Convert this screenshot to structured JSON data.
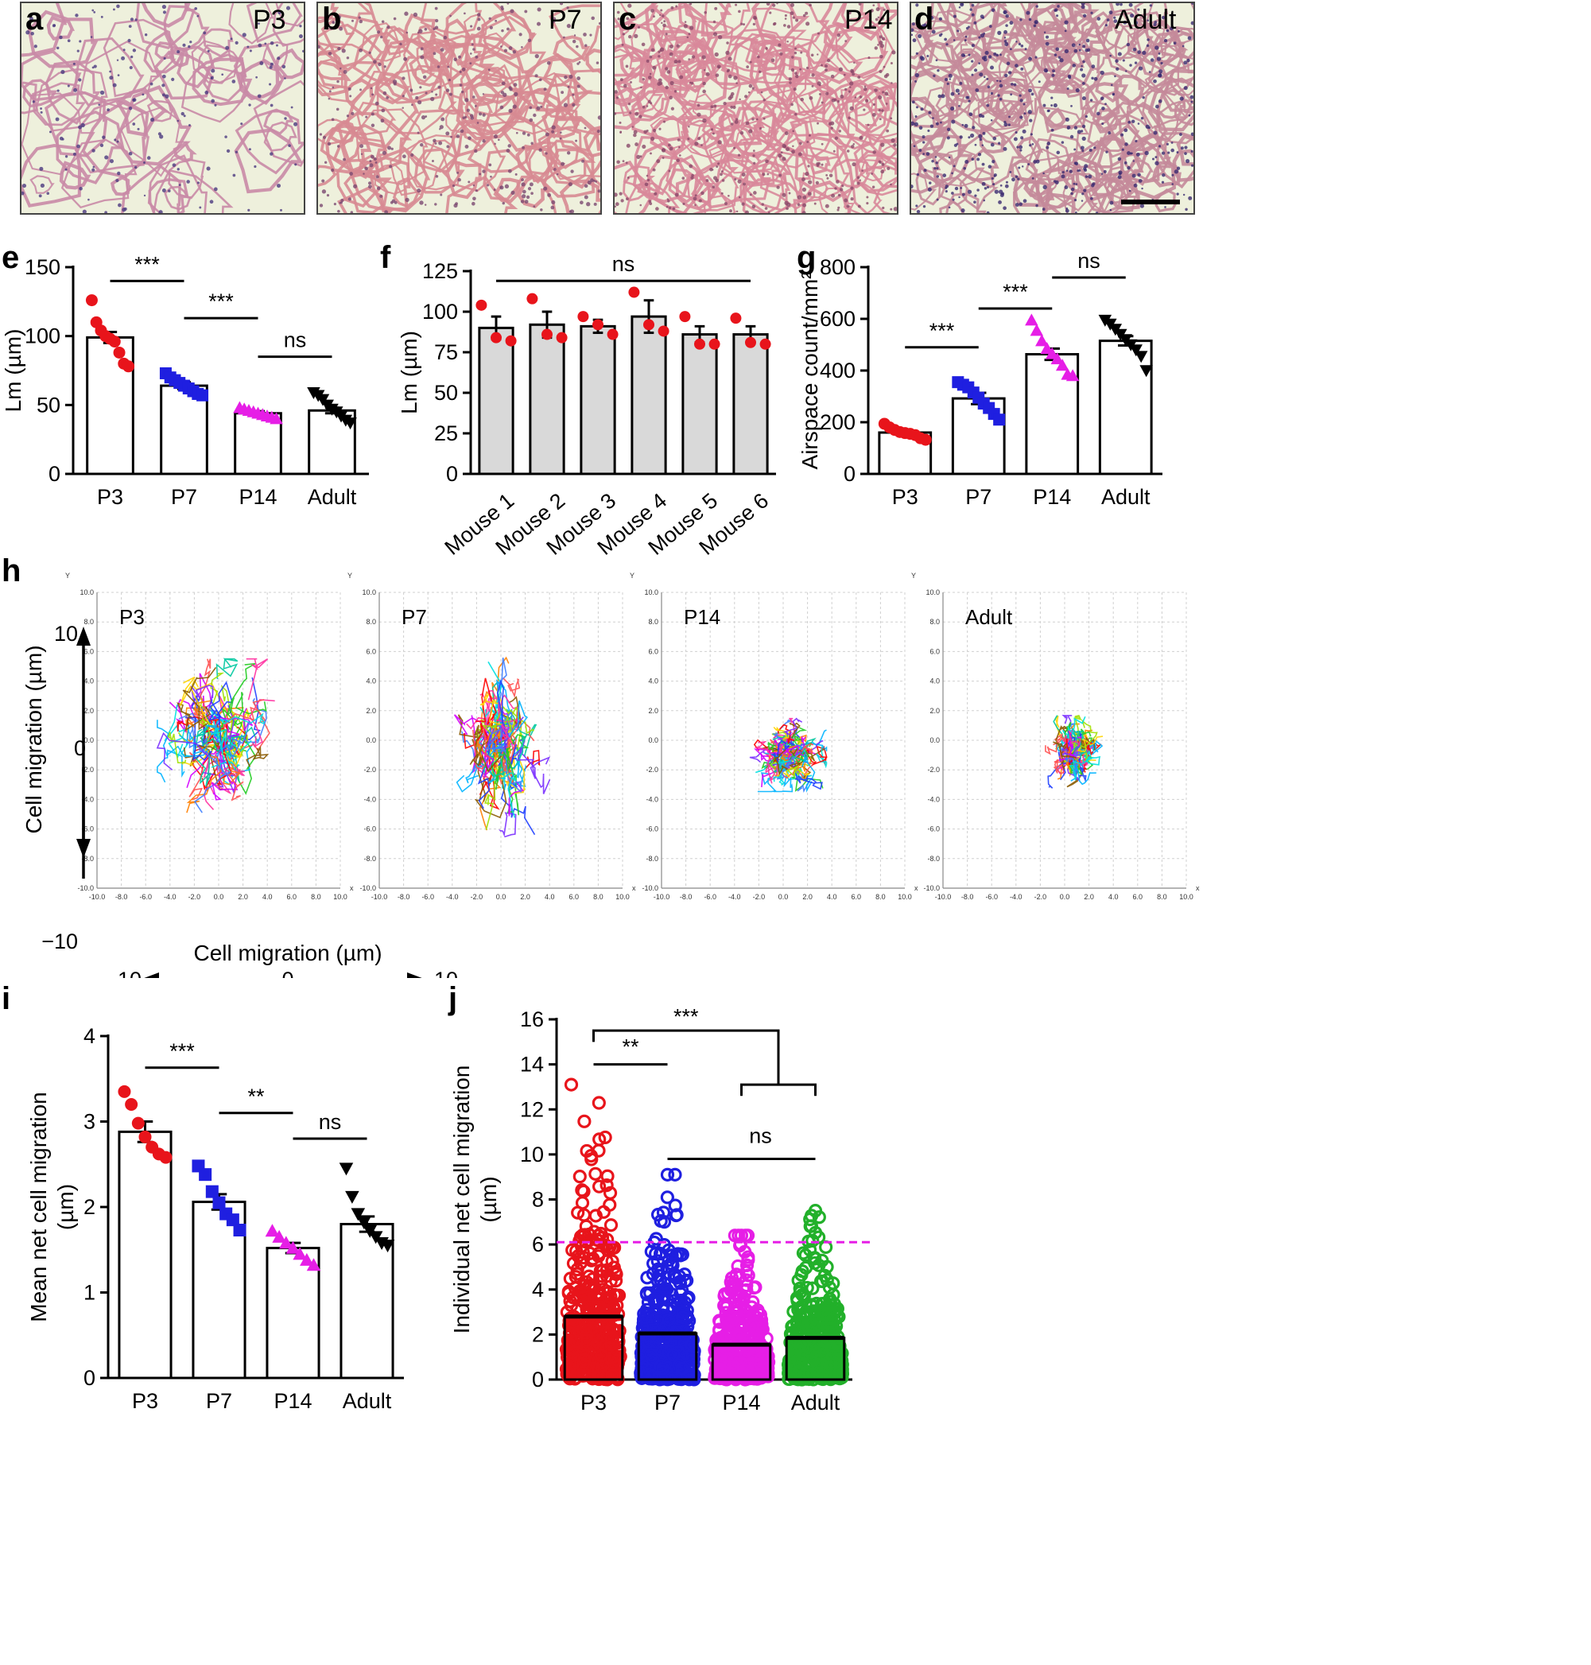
{
  "panels": {
    "a": {
      "letter": "a",
      "label": "P3"
    },
    "b": {
      "letter": "b",
      "label": "P7"
    },
    "c": {
      "letter": "c",
      "label": "P14"
    },
    "d": {
      "letter": "d",
      "label": "Adult"
    },
    "e": {
      "letter": "e"
    },
    "f": {
      "letter": "f"
    },
    "g": {
      "letter": "g"
    },
    "h": {
      "letter": "h"
    },
    "i": {
      "letter": "i"
    },
    "j": {
      "letter": "j"
    }
  },
  "colors": {
    "P3": "#e8141b",
    "P7": "#1f1fe0",
    "P14": "#e61ee6",
    "Adult": "#000000",
    "j_Adult": "#22b02a",
    "bar_grey": "#d9d9d9",
    "tissue_bg": "#eef0dc",
    "tissue_pink": "#d5879a",
    "tissue_purple": "#5a3a78",
    "threshold_line": "#e61ee6"
  },
  "chart_data": [
    {
      "id": "e",
      "type": "bar",
      "categories": [
        "P3",
        "P7",
        "P14",
        "Adult"
      ],
      "values": [
        99,
        64,
        44,
        46
      ],
      "errors": [
        4,
        2.5,
        1.5,
        2
      ],
      "points": [
        [
          126,
          110,
          104,
          100,
          98,
          96,
          88,
          80,
          78
        ],
        [
          73,
          70,
          68,
          66,
          64,
          62,
          60,
          58,
          57
        ],
        [
          48,
          47,
          46,
          45,
          44,
          43,
          42,
          41,
          40
        ],
        [
          59,
          57,
          54,
          50,
          47,
          45,
          42,
          39,
          37
        ]
      ],
      "markers": [
        "circle",
        "square",
        "triangle-up",
        "triangle-down"
      ],
      "ylabel": "Lm (µm)",
      "ylim": [
        0,
        150
      ],
      "yticks": [
        "0",
        "50",
        "100",
        "150"
      ],
      "significance": [
        {
          "from": 0,
          "to": 1,
          "label": "***",
          "y": 140
        },
        {
          "from": 1,
          "to": 2,
          "label": "***",
          "y": 113
        },
        {
          "from": 2,
          "to": 3,
          "label": "ns",
          "y": 85
        }
      ]
    },
    {
      "id": "f",
      "type": "bar",
      "categories": [
        "Mouse 1",
        "Mouse 2",
        "Mouse 3",
        "Mouse 4",
        "Mouse 5",
        "Mouse 6"
      ],
      "values": [
        90,
        92,
        91,
        97,
        86,
        86
      ],
      "errors": [
        7,
        8,
        4,
        10,
        5,
        5
      ],
      "points": [
        [
          104,
          84,
          82
        ],
        [
          108,
          86,
          84
        ],
        [
          97,
          92,
          86
        ],
        [
          112,
          92,
          88
        ],
        [
          97,
          80,
          80
        ],
        [
          96,
          81,
          80
        ]
      ],
      "ylabel": "Lm (µm)",
      "ylim": [
        0,
        125
      ],
      "yticks": [
        "0",
        "25",
        "50",
        "75",
        "100",
        "125"
      ],
      "significance": [
        {
          "from": 0,
          "to": 5,
          "label": "ns",
          "y": 119
        }
      ]
    },
    {
      "id": "g",
      "type": "bar",
      "categories": [
        "P3",
        "P7",
        "P14",
        "Adult"
      ],
      "values": [
        160,
        292,
        463,
        515
      ],
      "errors": [
        10,
        22,
        22,
        18
      ],
      "points": [
        [
          194,
          180,
          170,
          162,
          158,
          155,
          150,
          138,
          132
        ],
        [
          355,
          345,
          335,
          315,
          295,
          272,
          255,
          232,
          210
        ],
        [
          595,
          555,
          515,
          485,
          465,
          445,
          420,
          385,
          380
        ],
        [
          595,
          580,
          560,
          540,
          520,
          500,
          480,
          455,
          400
        ]
      ],
      "markers": [
        "circle",
        "square",
        "triangle-up",
        "triangle-down"
      ],
      "ylabel": "Airspace count/mm²",
      "ylim": [
        0,
        800
      ],
      "yticks": [
        "0",
        "200",
        "400",
        "600",
        "800"
      ],
      "significance": [
        {
          "from": 0,
          "to": 1,
          "label": "***",
          "y": 490
        },
        {
          "from": 1,
          "to": 2,
          "label": "***",
          "y": 640
        },
        {
          "from": 2,
          "to": 3,
          "label": "ns",
          "y": 760
        }
      ]
    },
    {
      "id": "h",
      "type": "line",
      "plots": [
        {
          "label": "P3",
          "spread_x": 3.6,
          "spread_y": 4.0,
          "offset_x": 0.0,
          "offset_y": 0.3
        },
        {
          "label": "P7",
          "spread_x": 2.8,
          "spread_y": 4.6,
          "offset_x": 0.1,
          "offset_y": -0.4
        },
        {
          "label": "P14",
          "spread_x": 2.4,
          "spread_y": 1.9,
          "offset_x": 0.2,
          "offset_y": -1.0
        },
        {
          "label": "Adult",
          "spread_x": 1.8,
          "spread_y": 1.9,
          "offset_x": 0.9,
          "offset_y": -0.8
        }
      ],
      "xlim": [
        -10,
        10
      ],
      "ylim": [
        -10,
        10
      ],
      "tick_labels": [
        "-10.0",
        "-8.0",
        "-6.0",
        "-4.0",
        "-2.0",
        "0.0",
        "2.0",
        "4.0",
        "6.0",
        "8.0",
        "10.0"
      ],
      "axis_x_letter": "x",
      "axis_y_letter": "Y",
      "grid": true,
      "ylabel": "Cell migration (µm)",
      "xlabel": "Cell migration (µm)",
      "big_ticks": {
        "neg": "−10",
        "zero": "0",
        "pos": "10"
      }
    },
    {
      "id": "i",
      "type": "bar",
      "categories": [
        "P3",
        "P7",
        "P14",
        "Adult"
      ],
      "values": [
        2.88,
        2.06,
        1.52,
        1.8
      ],
      "errors": [
        0.12,
        0.09,
        0.06,
        0.09
      ],
      "points": [
        [
          3.35,
          3.2,
          2.98,
          2.82,
          2.7,
          2.62,
          2.58
        ],
        [
          2.48,
          2.38,
          2.18,
          2.05,
          1.92,
          1.85,
          1.73
        ],
        [
          1.72,
          1.65,
          1.58,
          1.52,
          1.45,
          1.38,
          1.32
        ],
        [
          2.45,
          2.12,
          1.92,
          1.82,
          1.72,
          1.65,
          1.58,
          1.55
        ]
      ],
      "markers": [
        "circle",
        "square",
        "triangle-up",
        "triangle-down"
      ],
      "ylabel": "Mean net cell migration (µm)",
      "ylim": [
        0,
        4
      ],
      "yticks": [
        "0",
        "1",
        "2",
        "3",
        "4"
      ],
      "significance": [
        {
          "from": 0,
          "to": 1,
          "label": "***",
          "y": 3.63
        },
        {
          "from": 1,
          "to": 2,
          "label": "**",
          "y": 3.1
        },
        {
          "from": 2,
          "to": 3,
          "label": "ns",
          "y": 2.8
        }
      ]
    },
    {
      "id": "j",
      "type": "scatter",
      "categories": [
        "P3",
        "P7",
        "P14",
        "Adult"
      ],
      "means": [
        2.8,
        2.05,
        1.55,
        1.85
      ],
      "max_values": [
        13.1,
        9.1,
        6.4,
        7.5
      ],
      "ylabel": "Individual net cell migration (µm)",
      "ylim": [
        0,
        16
      ],
      "yticks": [
        "0",
        "2",
        "4",
        "6",
        "8",
        "10",
        "12",
        "14",
        "16"
      ],
      "threshold": 6.1,
      "significance": [
        {
          "label": "***",
          "y": 15.6
        },
        {
          "label": "**",
          "y": 14.6
        },
        {
          "label": "ns",
          "y": 10.5
        }
      ]
    }
  ]
}
